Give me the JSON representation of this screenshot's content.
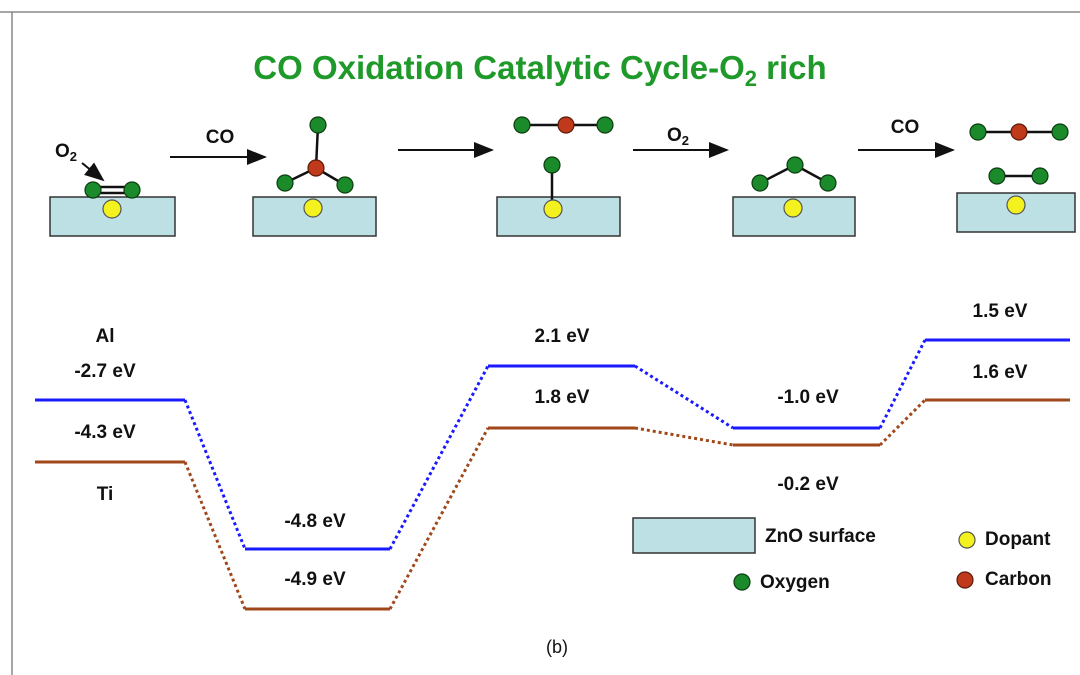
{
  "title": {
    "text": "CO Oxidation Catalytic Cycle-O",
    "subscript": "2",
    "suffix": " rich"
  },
  "molecule_label": {
    "text": "O",
    "subscript": "2"
  },
  "arrow_labels": [
    {
      "text": "CO"
    },
    {
      "text": "O",
      "subscript": "2"
    },
    {
      "text": "CO"
    }
  ],
  "energy_diagram": {
    "series": [
      {
        "name": "Al",
        "color": "#1a1aff",
        "labels": [
          "-2.7 eV",
          "-4.8 eV",
          "2.1 eV",
          "-1.0 eV",
          "1.5 eV"
        ]
      },
      {
        "name": "Ti",
        "color": "#a0481a",
        "labels": [
          "-4.3 eV",
          "-4.9 eV",
          "1.8 eV",
          "-0.2 eV",
          "1.6 eV"
        ]
      }
    ]
  },
  "legend": [
    {
      "label": "ZnO surface"
    },
    {
      "label": "Dopant"
    },
    {
      "label": "Oxygen"
    },
    {
      "label": "Carbon"
    }
  ],
  "caption": "(b)"
}
